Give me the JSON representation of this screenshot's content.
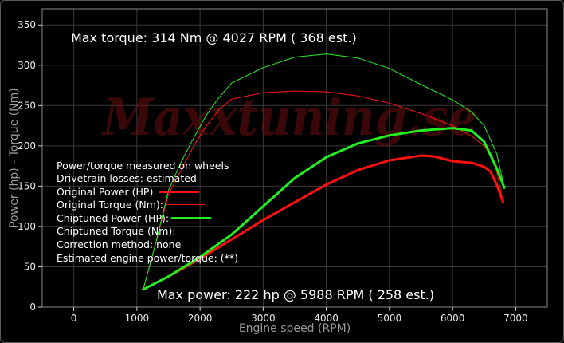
{
  "watermark": "Maxxtuning.se",
  "annotations": {
    "max_torque": "Max torque:  314 Nm @  4027 RPM ( 368 est.)",
    "max_power": "Max power:  222 hp @  5988 RPM ( 258 est.)"
  },
  "legend": {
    "line1": "Power/torque measured on wheels",
    "line2": "Drivetrain losses: estimated",
    "line3": "Correction method: none",
    "line4": "Estimated engine power/torque: (**)"
  },
  "colors": {
    "original": "#ff1010",
    "chiptuned": "#22ee22",
    "grid": "#3a3a3a",
    "plot_bg": "#000000"
  },
  "chart_data": {
    "type": "line",
    "xlabel": "Engine speed (RPM)",
    "ylabel": "Power (hp) - Torque (Nm)",
    "xlim": [
      -500,
      7500
    ],
    "ylim": [
      0,
      370
    ],
    "xticks": [
      "0",
      "1000",
      "2000",
      "3000",
      "4000",
      "5000",
      "6000",
      "7000"
    ],
    "yticks": [
      "0",
      "50",
      "100",
      "150",
      "200",
      "250",
      "300",
      "350"
    ],
    "grid": true,
    "legend_position": "center-left",
    "series": [
      {
        "name": "Original Power (HP):",
        "color": "#ff1010",
        "width": 3,
        "points": [
          [
            1100,
            22
          ],
          [
            1500,
            38
          ],
          [
            2000,
            60
          ],
          [
            2500,
            84
          ],
          [
            3000,
            108
          ],
          [
            3500,
            130
          ],
          [
            4000,
            152
          ],
          [
            4500,
            170
          ],
          [
            5000,
            182
          ],
          [
            5500,
            188
          ],
          [
            5700,
            187
          ],
          [
            6000,
            181
          ],
          [
            6300,
            179
          ],
          [
            6500,
            174
          ],
          [
            6600,
            168
          ],
          [
            6700,
            152
          ],
          [
            6800,
            130
          ]
        ]
      },
      {
        "name": "Original Torque (Nm):",
        "color": "#ff1010",
        "width": 1,
        "points": [
          [
            1100,
            22
          ],
          [
            1300,
            80
          ],
          [
            1500,
            140
          ],
          [
            1700,
            170
          ],
          [
            1900,
            200
          ],
          [
            2100,
            225
          ],
          [
            2300,
            245
          ],
          [
            2500,
            258
          ],
          [
            3000,
            266
          ],
          [
            3500,
            268
          ],
          [
            4000,
            267
          ],
          [
            4500,
            262
          ],
          [
            5000,
            253
          ],
          [
            5500,
            240
          ],
          [
            6000,
            225
          ],
          [
            6300,
            212
          ],
          [
            6500,
            200
          ],
          [
            6600,
            190
          ],
          [
            6700,
            168
          ],
          [
            6800,
            130
          ]
        ]
      },
      {
        "name": "Chiptuned Power (HP):",
        "color": "#22ee22",
        "width": 3,
        "points": [
          [
            1100,
            22
          ],
          [
            1500,
            38
          ],
          [
            2000,
            62
          ],
          [
            2500,
            90
          ],
          [
            3000,
            125
          ],
          [
            3500,
            160
          ],
          [
            4000,
            186
          ],
          [
            4500,
            203
          ],
          [
            5000,
            213
          ],
          [
            5500,
            219
          ],
          [
            6000,
            222
          ],
          [
            6300,
            219
          ],
          [
            6500,
            205
          ],
          [
            6700,
            172
          ],
          [
            6820,
            148
          ]
        ]
      },
      {
        "name": "Chiptuned Torque (Nm):",
        "color": "#22ee22",
        "width": 1,
        "points": [
          [
            1100,
            22
          ],
          [
            1300,
            80
          ],
          [
            1500,
            145
          ],
          [
            1700,
            180
          ],
          [
            1900,
            210
          ],
          [
            2100,
            238
          ],
          [
            2300,
            260
          ],
          [
            2500,
            278
          ],
          [
            3000,
            297
          ],
          [
            3500,
            310
          ],
          [
            4000,
            314
          ],
          [
            4500,
            309
          ],
          [
            5000,
            296
          ],
          [
            5500,
            276
          ],
          [
            6000,
            257
          ],
          [
            6300,
            242
          ],
          [
            6500,
            225
          ],
          [
            6700,
            190
          ],
          [
            6820,
            148
          ]
        ]
      }
    ]
  }
}
